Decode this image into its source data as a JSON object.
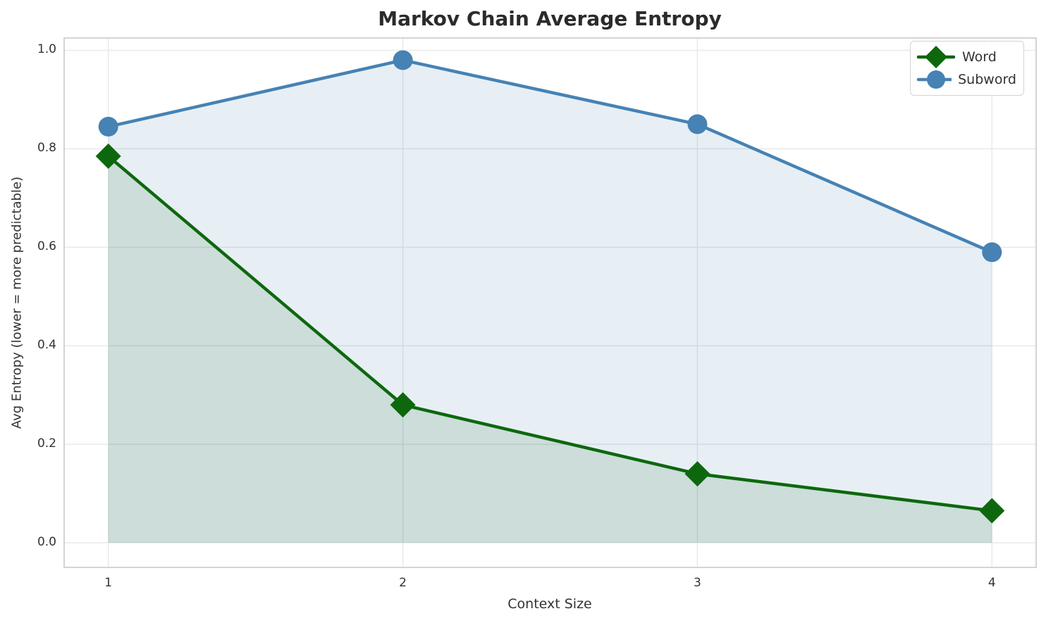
{
  "chart_data": {
    "type": "line",
    "title": "Markov Chain Average Entropy",
    "xlabel": "Context Size",
    "ylabel": "Avg Entropy (lower = more predictable)",
    "categories": [
      1,
      2,
      3,
      4
    ],
    "x_tick_labels": [
      "1",
      "2",
      "3",
      "4"
    ],
    "y_ticks": [
      0.0,
      0.2,
      0.4,
      0.6,
      0.8,
      1.0
    ],
    "y_tick_labels": [
      "0.0",
      "0.2",
      "0.4",
      "0.6",
      "0.8",
      "1.0"
    ],
    "xlim": [
      0.85,
      4.15
    ],
    "ylim": [
      -0.05,
      1.025
    ],
    "grid": true,
    "legend_position": "top-right",
    "series": [
      {
        "name": "Word",
        "marker": "diamond",
        "color": "#0d680d",
        "area_fill": "rgba(13,104,13,0.13)",
        "values": [
          0.785,
          0.28,
          0.14,
          0.065
        ]
      },
      {
        "name": "Subword",
        "marker": "circle",
        "color": "#4682b4",
        "area_fill": "rgba(70,130,180,0.13)",
        "values": [
          0.845,
          0.98,
          0.85,
          0.59
        ]
      }
    ],
    "style": {
      "grid_color": "#e9e9e9",
      "border_color": "#cfcfcf",
      "line_width": 4.5,
      "title_color": "#2b2b2b",
      "tick_color": "#333333"
    }
  }
}
